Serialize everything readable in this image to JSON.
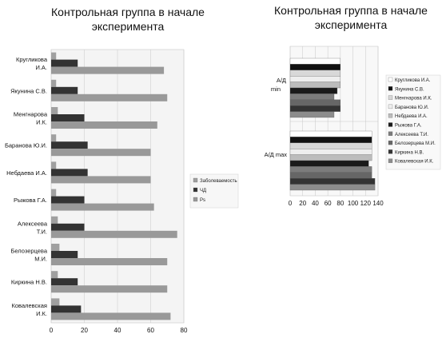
{
  "chart_data": [
    {
      "type": "bar",
      "orientation": "horizontal",
      "title": "Контрольная группа в начале\nэксперимента",
      "categories": [
        "Кругликова И.А.",
        "Якунина С.В.",
        "Менгнарова И.К.",
        "Баранова Ю.И.",
        "Небдаева И.А.",
        "Рыжова Г.А.",
        "Алексеева Т.И.",
        "Белозерцева М.И.",
        "Киркина Н.В.",
        "Ковалевская И.К."
      ],
      "series": [
        {
          "name": "Заболеваемость",
          "color": "#a0a0a0",
          "values": [
            3,
            3,
            4,
            3,
            3,
            3,
            4,
            5,
            4,
            5
          ]
        },
        {
          "name": "ЧД",
          "color": "#333333",
          "values": [
            16,
            16,
            20,
            22,
            22,
            20,
            20,
            16,
            16,
            18
          ]
        },
        {
          "name": "Рs",
          "color": "#999999",
          "values": [
            68,
            70,
            64,
            60,
            60,
            62,
            76,
            70,
            70,
            72
          ]
        }
      ],
      "xlim": [
        0,
        80
      ],
      "xticks": [
        0,
        20,
        40,
        60,
        80
      ],
      "grid": true,
      "legend": "right"
    },
    {
      "type": "bar",
      "orientation": "horizontal",
      "title": "Контрольная группа в начале\nэксперимента",
      "categories": [
        "А/Д\nmin",
        "А/Д max"
      ],
      "series": [
        {
          "name": "Кругликова И.А.",
          "color": "#ffffff",
          "values": [
            80,
            130
          ]
        },
        {
          "name": "Якунина С.В.",
          "color": "#111111",
          "values": [
            80,
            130
          ]
        },
        {
          "name": "Менгнарова И.К.",
          "color": "#d8d8d8",
          "values": [
            80,
            130
          ]
        },
        {
          "name": "Баранова Ю.И.",
          "color": "#eeeeee",
          "values": [
            80,
            130
          ]
        },
        {
          "name": "Небдаева И.А.",
          "color": "#bcbcbc",
          "values": [
            80,
            130
          ]
        },
        {
          "name": "Рыжова Г.А.",
          "color": "#1a1a1a",
          "values": [
            75,
            125
          ]
        },
        {
          "name": "Алексеева Т.И.",
          "color": "#7c7c7c",
          "values": [
            70,
            130
          ]
        },
        {
          "name": "Белозерцева М.И.",
          "color": "#666666",
          "values": [
            80,
            130
          ]
        },
        {
          "name": "Киркина Н.В.",
          "color": "#333333",
          "values": [
            80,
            135
          ]
        },
        {
          "name": "Ковалевская И.К.",
          "color": "#8c8c8c",
          "values": [
            70,
            135
          ]
        }
      ],
      "xlim": [
        0,
        140
      ],
      "xticks": [
        0,
        20,
        40,
        60,
        80,
        100,
        120,
        140
      ],
      "grid": true,
      "legend": "right"
    }
  ]
}
